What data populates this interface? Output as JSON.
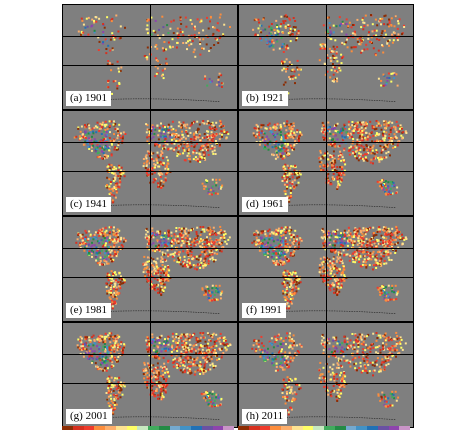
{
  "panels": [
    {
      "label": "(a) 1901",
      "density": 0.18
    },
    {
      "label": "(b) 1921",
      "density": 0.28
    },
    {
      "label": "(c) 1941",
      "density": 0.55
    },
    {
      "label": "(d) 1961",
      "density": 0.62
    },
    {
      "label": "(e) 1981",
      "density": 0.72
    },
    {
      "label": "(f) 1991",
      "density": 0.75
    },
    {
      "label": "(g) 2001",
      "density": 0.68
    },
    {
      "label": "(h) 2011",
      "density": 0.45
    }
  ],
  "colorbar_colors": [
    "#8c2d04",
    "#d7301f",
    "#ef3b2c",
    "#fd8d3c",
    "#fdae6b",
    "#fee391",
    "#ffff66",
    "#c7e9c0",
    "#41ab5d",
    "#238b45",
    "#74a9cf",
    "#4292c6",
    "#2171b5",
    "#6a51a3",
    "#8e44ad",
    "#c994c7"
  ],
  "colors": {
    "ocean": "#7f7f7f",
    "grid": "#000000"
  }
}
